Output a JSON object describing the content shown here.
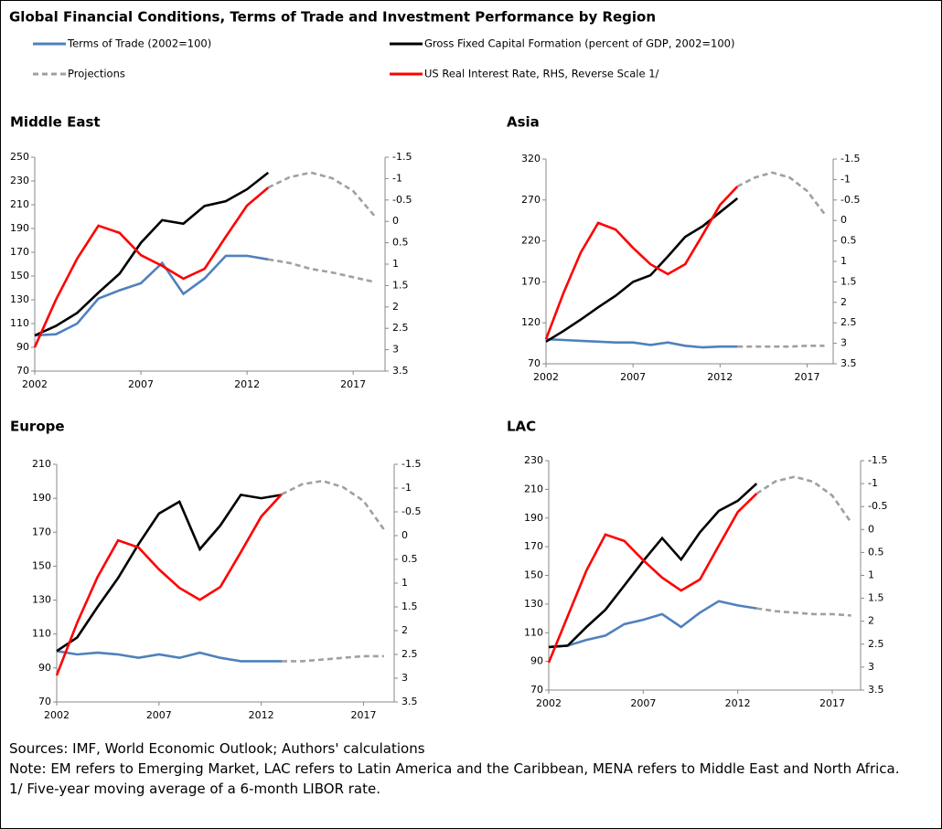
{
  "title": "Global Financial Conditions, Terms of Trade and Investment Performance by Region",
  "chart_data": [
    {
      "type": "line",
      "title": "Middle East",
      "x": [
        2002,
        2003,
        2004,
        2005,
        2006,
        2007,
        2008,
        2009,
        2010,
        2011,
        2012,
        2013,
        2014,
        2015,
        2016,
        2017,
        2018
      ],
      "xlim": [
        2002,
        2018.5
      ],
      "xticks": [
        2002,
        2007,
        2012,
        2017
      ],
      "ylim": [
        70,
        250
      ],
      "yticks": [
        70,
        90,
        110,
        130,
        150,
        170,
        190,
        210,
        230,
        250
      ],
      "y2lim": [
        3.5,
        -1.5
      ],
      "y2ticks": [
        -1.5,
        -1,
        -0.5,
        0,
        0.5,
        1,
        1.5,
        2,
        2.5,
        3,
        3.5
      ],
      "series": [
        {
          "name": "Terms of Trade (2002=100)",
          "color": "#4f81bd",
          "values": [
            100,
            101,
            110,
            131,
            138,
            144,
            161,
            135,
            148,
            167,
            167,
            164,
            null,
            null,
            null,
            null,
            null
          ]
        },
        {
          "name": "Gross Fixed Capital  Formation (percent of GDP, 2002=100)",
          "color": "#000000",
          "values": [
            100,
            108,
            119,
            136,
            152,
            178,
            197,
            194,
            209,
            213,
            223,
            237,
            null,
            null,
            null,
            null,
            null
          ]
        },
        {
          "name": "Projections",
          "color": "#a0a0a0",
          "dashed": true,
          "values": [
            null,
            null,
            null,
            null,
            null,
            null,
            null,
            null,
            null,
            null,
            null,
            164,
            161,
            156,
            153,
            149,
            145
          ]
        },
        {
          "name": "US Real Interest Rate,  RHS, Reverse Scale 1/",
          "color": "#ff0000",
          "axis": "y2",
          "values": [
            2.94,
            1.83,
            0.87,
            0.1,
            0.27,
            0.79,
            1.04,
            1.34,
            1.11,
            0.36,
            -0.37,
            -0.79,
            null,
            null,
            null,
            null,
            null
          ]
        },
        {
          "name": "Projections",
          "color": "#a0a0a0",
          "dashed": true,
          "axis": "y2",
          "values": [
            null,
            null,
            null,
            null,
            null,
            null,
            null,
            null,
            null,
            null,
            null,
            -0.79,
            -1.03,
            -1.14,
            -1.01,
            -0.71,
            -0.13
          ]
        }
      ]
    },
    {
      "type": "line",
      "title": "Asia",
      "x": [
        2002,
        2003,
        2004,
        2005,
        2006,
        2007,
        2008,
        2009,
        2010,
        2011,
        2012,
        2013,
        2014,
        2015,
        2016,
        2017,
        2018
      ],
      "xlim": [
        2002,
        2018.5
      ],
      "xticks": [
        2002,
        2007,
        2012,
        2017
      ],
      "ylim": [
        70,
        320
      ],
      "yticks": [
        70,
        120,
        170,
        220,
        270,
        320
      ],
      "y2lim": [
        3.5,
        -1.5
      ],
      "y2ticks": [
        -1.5,
        -1,
        -0.5,
        0,
        0.5,
        1,
        1.5,
        2,
        2.5,
        3,
        3.5
      ],
      "series": [
        {
          "name": "Terms of Trade (2002=100)",
          "color": "#4f81bd",
          "values": [
            100,
            99,
            98,
            97,
            96,
            96,
            93,
            96,
            92,
            90,
            91,
            91,
            null,
            null,
            null,
            null,
            null
          ]
        },
        {
          "name": "Gross Fixed Capital  Formation (percent of GDP, 2002=100)",
          "color": "#000000",
          "values": [
            97,
            110,
            124,
            139,
            153,
            170,
            178,
            201,
            225,
            238,
            255,
            272,
            null,
            null,
            null,
            null,
            null
          ]
        },
        {
          "name": "Projections",
          "color": "#a0a0a0",
          "dashed": true,
          "values": [
            null,
            null,
            null,
            null,
            null,
            null,
            null,
            null,
            null,
            null,
            null,
            91,
            91,
            91,
            91,
            92,
            92
          ]
        },
        {
          "name": "US Real Interest Rate,  RHS, Reverse Scale 1/",
          "color": "#ff0000",
          "axis": "y2",
          "values": [
            2.9,
            1.78,
            0.78,
            0.06,
            0.22,
            0.67,
            1.07,
            1.31,
            1.07,
            0.35,
            -0.38,
            -0.83,
            null,
            null,
            null,
            null,
            null
          ]
        },
        {
          "name": "Projections",
          "color": "#a0a0a0",
          "dashed": true,
          "axis": "y2",
          "values": [
            null,
            null,
            null,
            null,
            null,
            null,
            null,
            null,
            null,
            null,
            null,
            -0.83,
            -1.05,
            -1.17,
            -1.05,
            -0.72,
            -0.16
          ]
        }
      ]
    },
    {
      "type": "line",
      "title": "Europe",
      "x": [
        2002,
        2003,
        2004,
        2005,
        2006,
        2007,
        2008,
        2009,
        2010,
        2011,
        2012,
        2013,
        2014,
        2015,
        2016,
        2017,
        2018
      ],
      "xlim": [
        2002,
        2018.5
      ],
      "xticks": [
        2002,
        2007,
        2012,
        2017
      ],
      "ylim": [
        70,
        210
      ],
      "yticks": [
        70,
        90,
        110,
        130,
        150,
        170,
        190,
        210
      ],
      "y2lim": [
        3.5,
        -1.5
      ],
      "y2ticks": [
        -1.5,
        -1,
        -0.5,
        0,
        0.5,
        1,
        1.5,
        2,
        2.5,
        3,
        3.5
      ],
      "series": [
        {
          "name": "Terms of Trade (2002=100)",
          "color": "#4f81bd",
          "values": [
            100,
            98,
            99,
            98,
            96,
            98,
            96,
            99,
            96,
            94,
            94,
            94,
            null,
            null,
            null,
            null,
            null
          ]
        },
        {
          "name": "Gross Fixed Capital  Formation (percent of GDP, 2002=100)",
          "color": "#000000",
          "values": [
            100,
            108,
            126,
            143,
            163,
            181,
            188,
            160,
            174,
            192,
            190,
            192,
            null,
            null,
            null,
            null,
            null
          ]
        },
        {
          "name": "Projections",
          "color": "#a0a0a0",
          "dashed": true,
          "values": [
            null,
            null,
            null,
            null,
            null,
            null,
            null,
            null,
            null,
            null,
            null,
            94,
            94,
            95,
            96,
            97,
            97
          ]
        },
        {
          "name": "US Real Interest Rate,  RHS, Reverse Scale 1/",
          "color": "#ff0000",
          "axis": "y2",
          "values": [
            2.94,
            1.83,
            0.87,
            0.1,
            0.25,
            0.71,
            1.1,
            1.35,
            1.08,
            0.35,
            -0.4,
            -0.87,
            null,
            null,
            null,
            null,
            null
          ]
        },
        {
          "name": "Projections",
          "color": "#a0a0a0",
          "dashed": true,
          "axis": "y2",
          "values": [
            null,
            null,
            null,
            null,
            null,
            null,
            null,
            null,
            null,
            null,
            null,
            -0.87,
            -1.08,
            -1.15,
            -1.02,
            -0.73,
            -0.13
          ]
        }
      ]
    },
    {
      "type": "line",
      "title": "LAC",
      "x": [
        2002,
        2003,
        2004,
        2005,
        2006,
        2007,
        2008,
        2009,
        2010,
        2011,
        2012,
        2013,
        2014,
        2015,
        2016,
        2017,
        2018
      ],
      "xlim": [
        2002,
        2018.5
      ],
      "xticks": [
        2002,
        2007,
        2012,
        2017
      ],
      "ylim": [
        70,
        230
      ],
      "yticks": [
        70,
        90,
        110,
        130,
        150,
        170,
        190,
        210,
        230
      ],
      "y2lim": [
        3.5,
        -1.5
      ],
      "y2ticks": [
        -1.5,
        -1,
        -0.5,
        0,
        0.5,
        1,
        1.5,
        2,
        2.5,
        3,
        3.5
      ],
      "series": [
        {
          "name": "Terms of Trade (2002=100)",
          "color": "#4f81bd",
          "values": [
            100,
            101,
            105,
            108,
            116,
            119,
            123,
            114,
            124,
            132,
            129,
            127,
            null,
            null,
            null,
            null,
            null
          ]
        },
        {
          "name": "Gross Fixed Capital  Formation (percent of GDP, 2002=100)",
          "color": "#000000",
          "values": [
            100,
            101,
            114,
            126,
            143,
            160,
            176,
            161,
            180,
            195,
            202,
            214,
            null,
            null,
            null,
            null,
            null
          ]
        },
        {
          "name": "Projections",
          "color": "#a0a0a0",
          "dashed": true,
          "values": [
            null,
            null,
            null,
            null,
            null,
            null,
            null,
            null,
            null,
            null,
            null,
            127,
            125,
            124,
            123,
            123,
            122
          ]
        },
        {
          "name": "US Real Interest Rate,  RHS, Reverse Scale 1/",
          "color": "#ff0000",
          "axis": "y2",
          "values": [
            2.9,
            1.89,
            0.89,
            0.11,
            0.25,
            0.67,
            1.05,
            1.33,
            1.09,
            0.35,
            -0.38,
            -0.78,
            null,
            null,
            null,
            null,
            null
          ]
        },
        {
          "name": "Projections",
          "color": "#a0a0a0",
          "dashed": true,
          "axis": "y2",
          "values": [
            null,
            null,
            null,
            null,
            null,
            null,
            null,
            null,
            null,
            null,
            null,
            -0.78,
            -1.05,
            -1.15,
            -1.04,
            -0.74,
            -0.15
          ]
        }
      ]
    }
  ],
  "notes": [
    "Sources: IMF, World Economic Outlook; Authors' calculations",
    "Note: EM refers to Emerging Market, LAC refers to Latin America and the Caribbean, MENA refers to Middle East and North Africa.",
    "1/ Five-year moving average of a 6-month LIBOR rate."
  ]
}
